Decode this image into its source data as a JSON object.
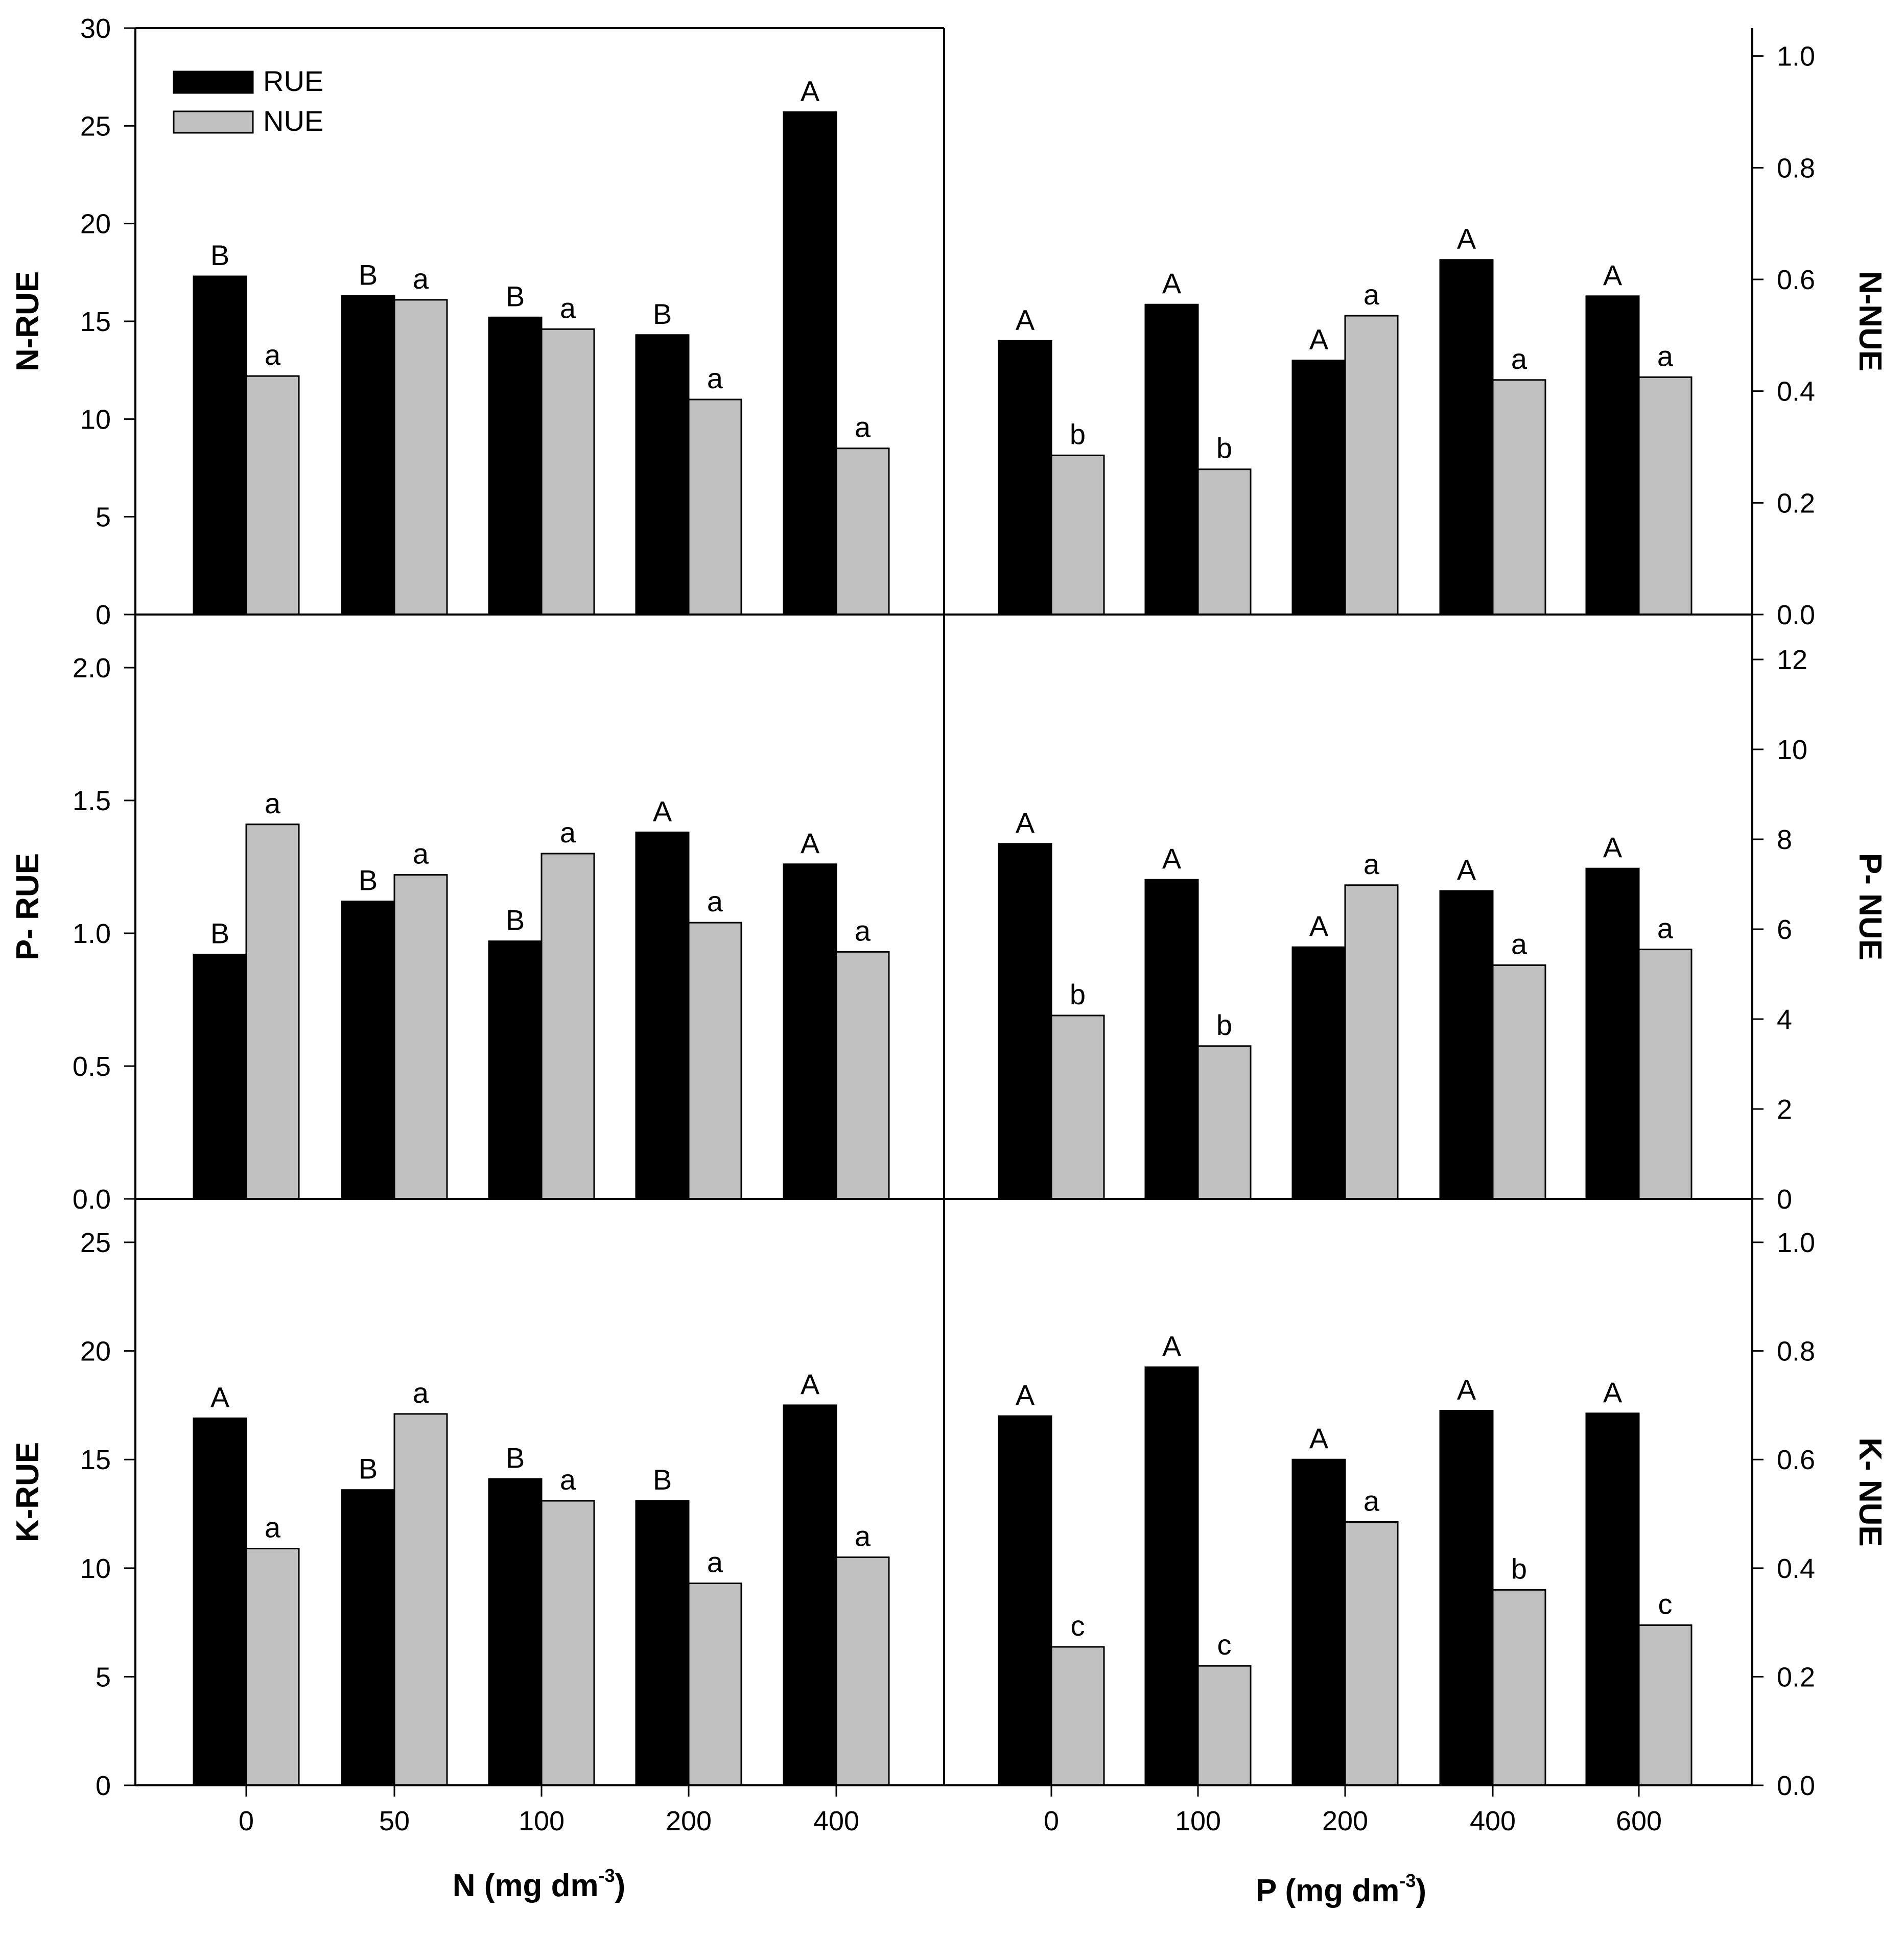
{
  "chart_data": [
    {
      "id": "N-panel-left",
      "type": "bar",
      "ylabel": "N-RUE",
      "ylim": [
        0,
        30
      ],
      "yticks": [
        0,
        5,
        10,
        15,
        20,
        25,
        30
      ],
      "categories": [
        "0",
        "50",
        "100",
        "200",
        "400"
      ],
      "series": [
        {
          "name": "RUE",
          "values": [
            17.3,
            16.3,
            15.2,
            14.3,
            25.7
          ],
          "letters": [
            "B",
            "B",
            "B",
            "B",
            "A"
          ]
        },
        {
          "name": "NUE",
          "values": [
            12.2,
            16.1,
            14.6,
            11.0,
            8.5
          ],
          "letters": [
            "a",
            "a",
            "a",
            "a",
            "a"
          ]
        }
      ],
      "legend": {
        "position": "top-left",
        "entries": [
          "RUE",
          "NUE"
        ]
      }
    },
    {
      "id": "N-panel-right",
      "type": "bar",
      "ylabel": "N-NUE",
      "y_axis_side": "right",
      "ylim": [
        0,
        1.05
      ],
      "yticks": [
        "0.0",
        "0.2",
        "0.4",
        "0.6",
        "0.8",
        "1.0"
      ],
      "categories": [
        "0",
        "100",
        "200",
        "400",
        "600"
      ],
      "series": [
        {
          "name": "RUE",
          "values": [
            0.49,
            0.555,
            0.455,
            0.635,
            0.57
          ],
          "letters": [
            "A",
            "A",
            "A",
            "A",
            "A"
          ]
        },
        {
          "name": "NUE",
          "values": [
            0.285,
            0.26,
            0.535,
            0.42,
            0.425
          ],
          "letters": [
            "b",
            "b",
            "a",
            "a",
            "a"
          ]
        }
      ]
    },
    {
      "id": "P-panel-left",
      "type": "bar",
      "ylabel": "P- RUE",
      "ylim": [
        0,
        2.2
      ],
      "yticks": [
        "0.0",
        "0.5",
        "1.0",
        "1.5",
        "2.0"
      ],
      "categories": [
        "0",
        "50",
        "100",
        "200",
        "400"
      ],
      "series": [
        {
          "name": "RUE",
          "values": [
            0.92,
            1.12,
            0.97,
            1.38,
            1.26
          ],
          "letters": [
            "B",
            "B",
            "B",
            "A",
            "A"
          ]
        },
        {
          "name": "NUE",
          "values": [
            1.41,
            1.22,
            1.3,
            1.04,
            0.93
          ],
          "letters": [
            "a",
            "a",
            "a",
            "a",
            "a"
          ]
        }
      ]
    },
    {
      "id": "P-panel-right",
      "type": "bar",
      "ylabel": "P- NUE",
      "y_axis_side": "right",
      "ylim": [
        0,
        13
      ],
      "yticks": [
        0,
        2,
        4,
        6,
        8,
        10,
        12
      ],
      "categories": [
        "0",
        "100",
        "200",
        "400",
        "600"
      ],
      "series": [
        {
          "name": "RUE",
          "values": [
            7.9,
            7.1,
            5.6,
            6.85,
            7.35
          ],
          "letters": [
            "A",
            "A",
            "A",
            "A",
            "A"
          ]
        },
        {
          "name": "NUE",
          "values": [
            4.08,
            3.4,
            6.98,
            5.2,
            5.55
          ],
          "letters": [
            "b",
            "b",
            "a",
            "a",
            "a"
          ]
        }
      ]
    },
    {
      "id": "K-panel-left",
      "type": "bar",
      "ylabel": "K-RUE",
      "ylim": [
        0,
        27
      ],
      "yticks": [
        0,
        5,
        10,
        15,
        20,
        25
      ],
      "categories": [
        "0",
        "50",
        "100",
        "200",
        "400"
      ],
      "series": [
        {
          "name": "RUE",
          "values": [
            16.9,
            13.6,
            14.1,
            13.1,
            17.5
          ],
          "letters": [
            "A",
            "B",
            "B",
            "B",
            "A"
          ]
        },
        {
          "name": "NUE",
          "values": [
            10.9,
            17.1,
            13.1,
            9.3,
            10.5
          ],
          "letters": [
            "a",
            "a",
            "a",
            "a",
            "a"
          ]
        }
      ]
    },
    {
      "id": "K-panel-right",
      "type": "bar",
      "ylabel": "K- NUE",
      "y_axis_side": "right",
      "ylim": [
        0,
        1.08
      ],
      "yticks": [
        "0.0",
        "0.2",
        "0.4",
        "0.6",
        "0.8",
        "1.0"
      ],
      "categories": [
        "0",
        "100",
        "200",
        "400",
        "600"
      ],
      "series": [
        {
          "name": "RUE",
          "values": [
            0.68,
            0.77,
            0.6,
            0.69,
            0.685
          ],
          "letters": [
            "A",
            "A",
            "A",
            "A",
            "A"
          ]
        },
        {
          "name": "NUE",
          "values": [
            0.255,
            0.22,
            0.485,
            0.36,
            0.295
          ],
          "letters": [
            "c",
            "c",
            "a",
            "b",
            "c"
          ]
        }
      ]
    }
  ],
  "x_axis_titles": {
    "left": {
      "main": "N (mg dm",
      "sup": "-3",
      "close": ")"
    },
    "right": {
      "main": "P (mg dm",
      "sup": "-3",
      "close": ")"
    }
  },
  "colors": {
    "RUE": "#000000",
    "NUE": "#c0c0c0",
    "frame": "#000000",
    "background": "#ffffff"
  }
}
